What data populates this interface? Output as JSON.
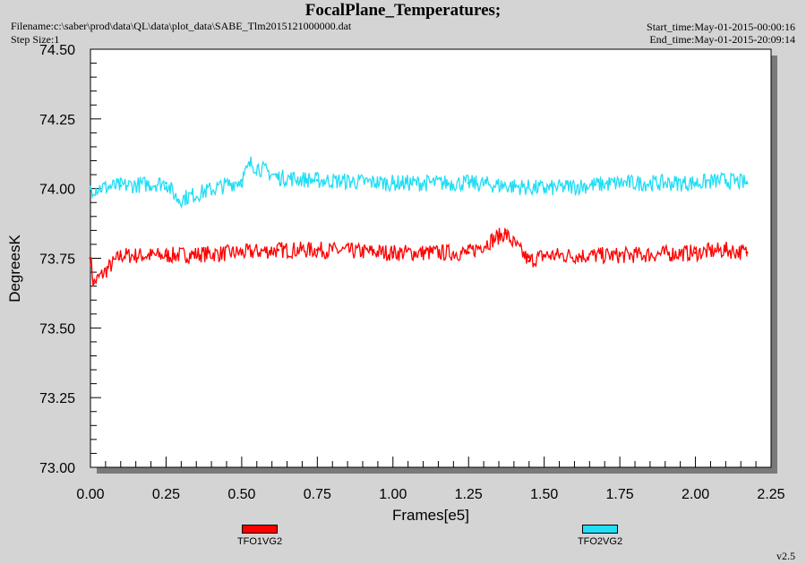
{
  "header": {
    "title": "FocalPlane_Temperatures;",
    "filename": "Filename:c:\\saber\\prod\\data\\QL\\data\\plot_data\\SABE_Tlm2015121000000.dat",
    "step_size": "Step Size:1",
    "start_time": "Start_time:May-01-2015-00:00:16",
    "end_time": "End_time:May-01-2015-20:09:14"
  },
  "version": "v2.5",
  "chart_data": {
    "type": "line",
    "title": "FocalPlane_Temperatures;",
    "xlabel": "Frames[e5]",
    "ylabel": "DegreesK",
    "xlim": [
      0.0,
      2.25
    ],
    "ylim": [
      73.0,
      74.5
    ],
    "x_ticks": [
      "0.00",
      "0.25",
      "0.50",
      "0.75",
      "1.00",
      "1.25",
      "1.50",
      "1.75",
      "2.00",
      "2.25"
    ],
    "y_ticks": [
      "73.00",
      "73.25",
      "73.50",
      "73.75",
      "74.00",
      "74.25",
      "74.50"
    ],
    "grid": false,
    "legend_position": "bottom",
    "series": [
      {
        "name": "TFO1VG2",
        "color": "#ff0000",
        "x": [
          0.0,
          0.01,
          0.1,
          0.25,
          0.5,
          0.62,
          0.75,
          1.0,
          1.25,
          1.37,
          1.45,
          1.5,
          1.75,
          2.0,
          2.1,
          2.17
        ],
        "y": [
          73.75,
          73.66,
          73.76,
          73.76,
          73.77,
          73.78,
          73.78,
          73.77,
          73.77,
          73.84,
          73.74,
          73.76,
          73.76,
          73.77,
          73.78,
          73.77
        ]
      },
      {
        "name": "TFO2VG2",
        "color": "#22ddf5",
        "x": [
          0.0,
          0.1,
          0.25,
          0.29,
          0.5,
          0.53,
          0.62,
          0.75,
          1.0,
          1.25,
          1.5,
          1.75,
          2.0,
          2.1,
          2.17
        ],
        "y": [
          74.0,
          74.01,
          74.02,
          73.96,
          74.03,
          74.09,
          74.04,
          74.03,
          74.02,
          74.02,
          74.0,
          74.02,
          74.02,
          74.03,
          74.02
        ]
      }
    ]
  }
}
